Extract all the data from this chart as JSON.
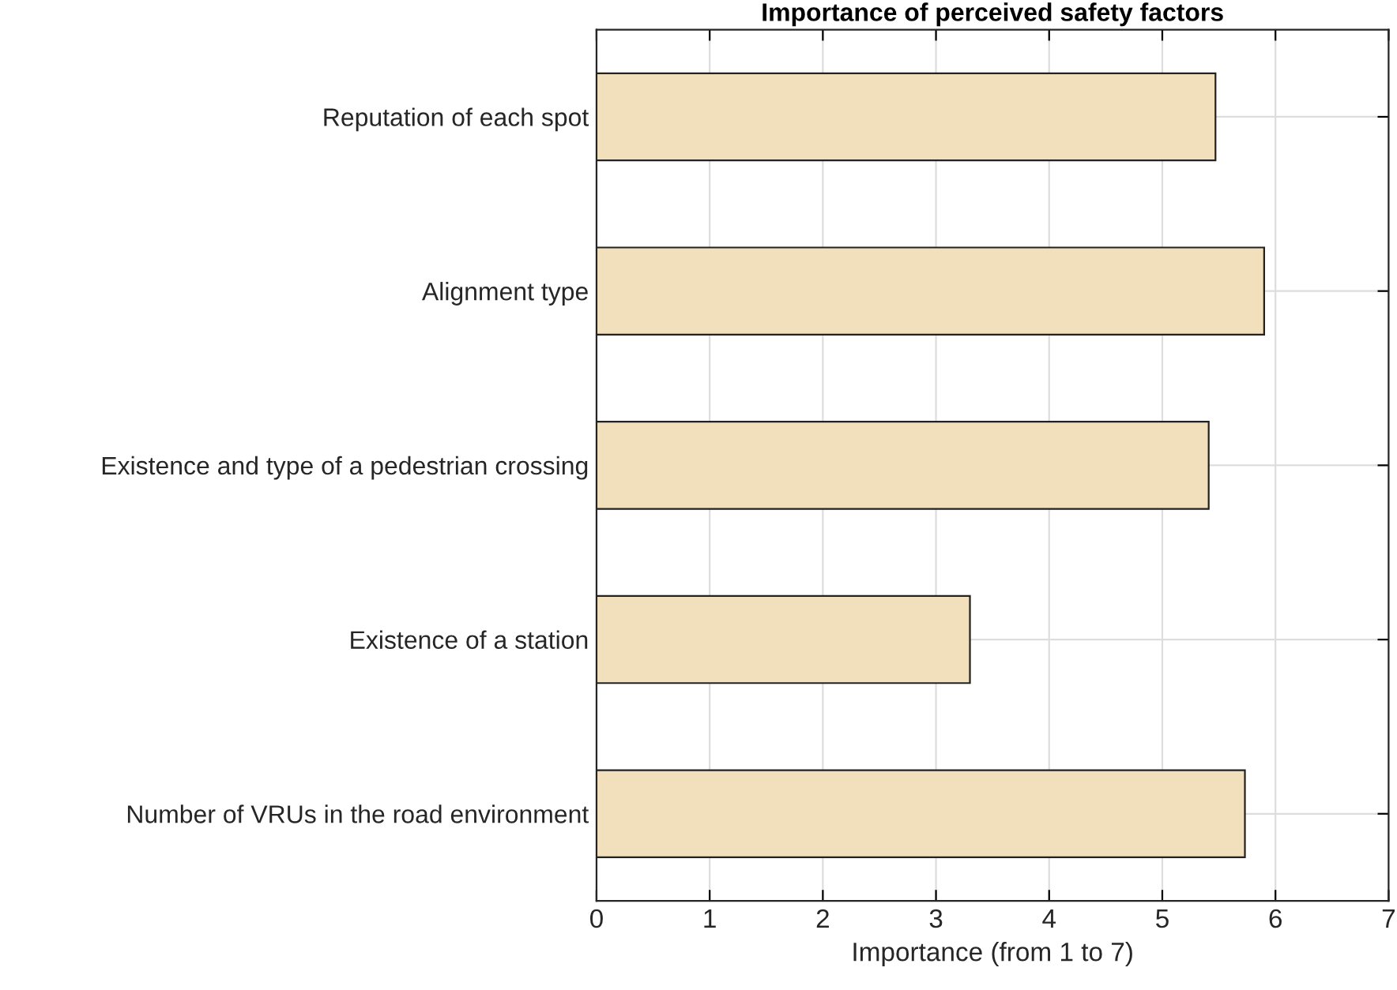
{
  "chart_data": {
    "type": "bar",
    "orientation": "horizontal",
    "title": "Importance of perceived safety factors",
    "xlabel": "Importance (from 1 to 7)",
    "categories": [
      "Reputation of each spot",
      "Alignment type",
      "Existence and type of a pedestrian crossing",
      "Existence of a station",
      "Number of VRUs in the road environment"
    ],
    "values": [
      5.47,
      5.9,
      5.41,
      3.3,
      5.73
    ],
    "color": "#f2dfbb",
    "xlim": [
      0,
      7
    ],
    "xticks": [
      0,
      1,
      2,
      3,
      4,
      5,
      6,
      7
    ],
    "grid": true
  }
}
